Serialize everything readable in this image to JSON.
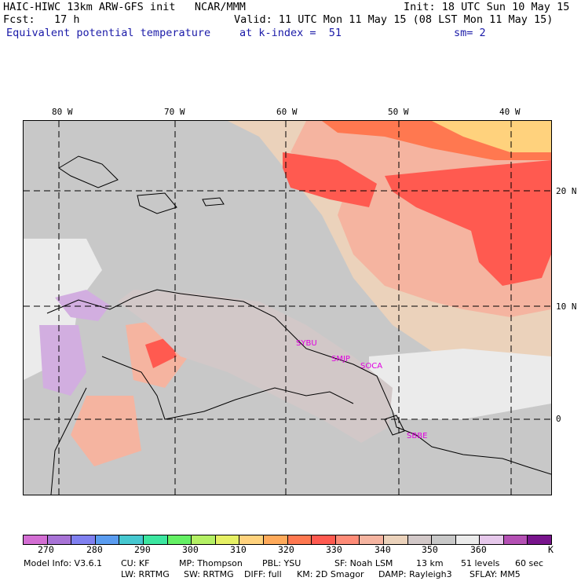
{
  "header": {
    "line1_left": "HAIC-HIWC 13km ARW-GFS init   NCAR/MMM",
    "line1_right": "Init: 18 UTC Sun 10 May 15",
    "line2_left": "Fcst:   17 h",
    "line2_right": "Valid: 11 UTC Mon 11 May 15 (08 LST Mon 11 May 15)",
    "line3_left": "Equivalent potential temperature",
    "line3_mid": "at k-index =  51",
    "line3_right": "sm= 2"
  },
  "longitude_labels": [
    "80 W",
    "70 W",
    "60 W",
    "50 W",
    "40 W"
  ],
  "latitude_labels": [
    "20 N",
    "10 N",
    "0"
  ],
  "stations": [
    "SYBU",
    "SMJP",
    "SOCA",
    "SBBE"
  ],
  "colorbar": {
    "colors": [
      "#d36ed3",
      "#a873d6",
      "#8080f0",
      "#5a9cf0",
      "#46c8d0",
      "#3ce6a0",
      "#64f064",
      "#b4f064",
      "#e6f064",
      "#ffd27d",
      "#ffaa5a",
      "#ff7850",
      "#ff5a50",
      "#ff8c78",
      "#f5b4a0",
      "#ebd2bb",
      "#d2c8c8",
      "#c8c8c8",
      "#ebebeb",
      "#e6c8eb",
      "#b450b4",
      "#78148c"
    ],
    "labels": [
      "270",
      "280",
      "290",
      "300",
      "310",
      "320",
      "330",
      "340",
      "350",
      "360",
      "K"
    ]
  },
  "model_info": {
    "line1": [
      "Model Info: V3.6.1",
      "CU: KF",
      "MP: Thompson",
      "PBL: YSU",
      "SF: Noah LSM",
      "13 km",
      "51 levels",
      "60 sec"
    ],
    "line2": [
      "LW: RRTMG",
      "SW: RRTMG",
      "DIFF: full",
      "KM: 2D Smagor",
      "DAMP: Rayleigh3",
      "SFLAY: MM5"
    ]
  }
}
